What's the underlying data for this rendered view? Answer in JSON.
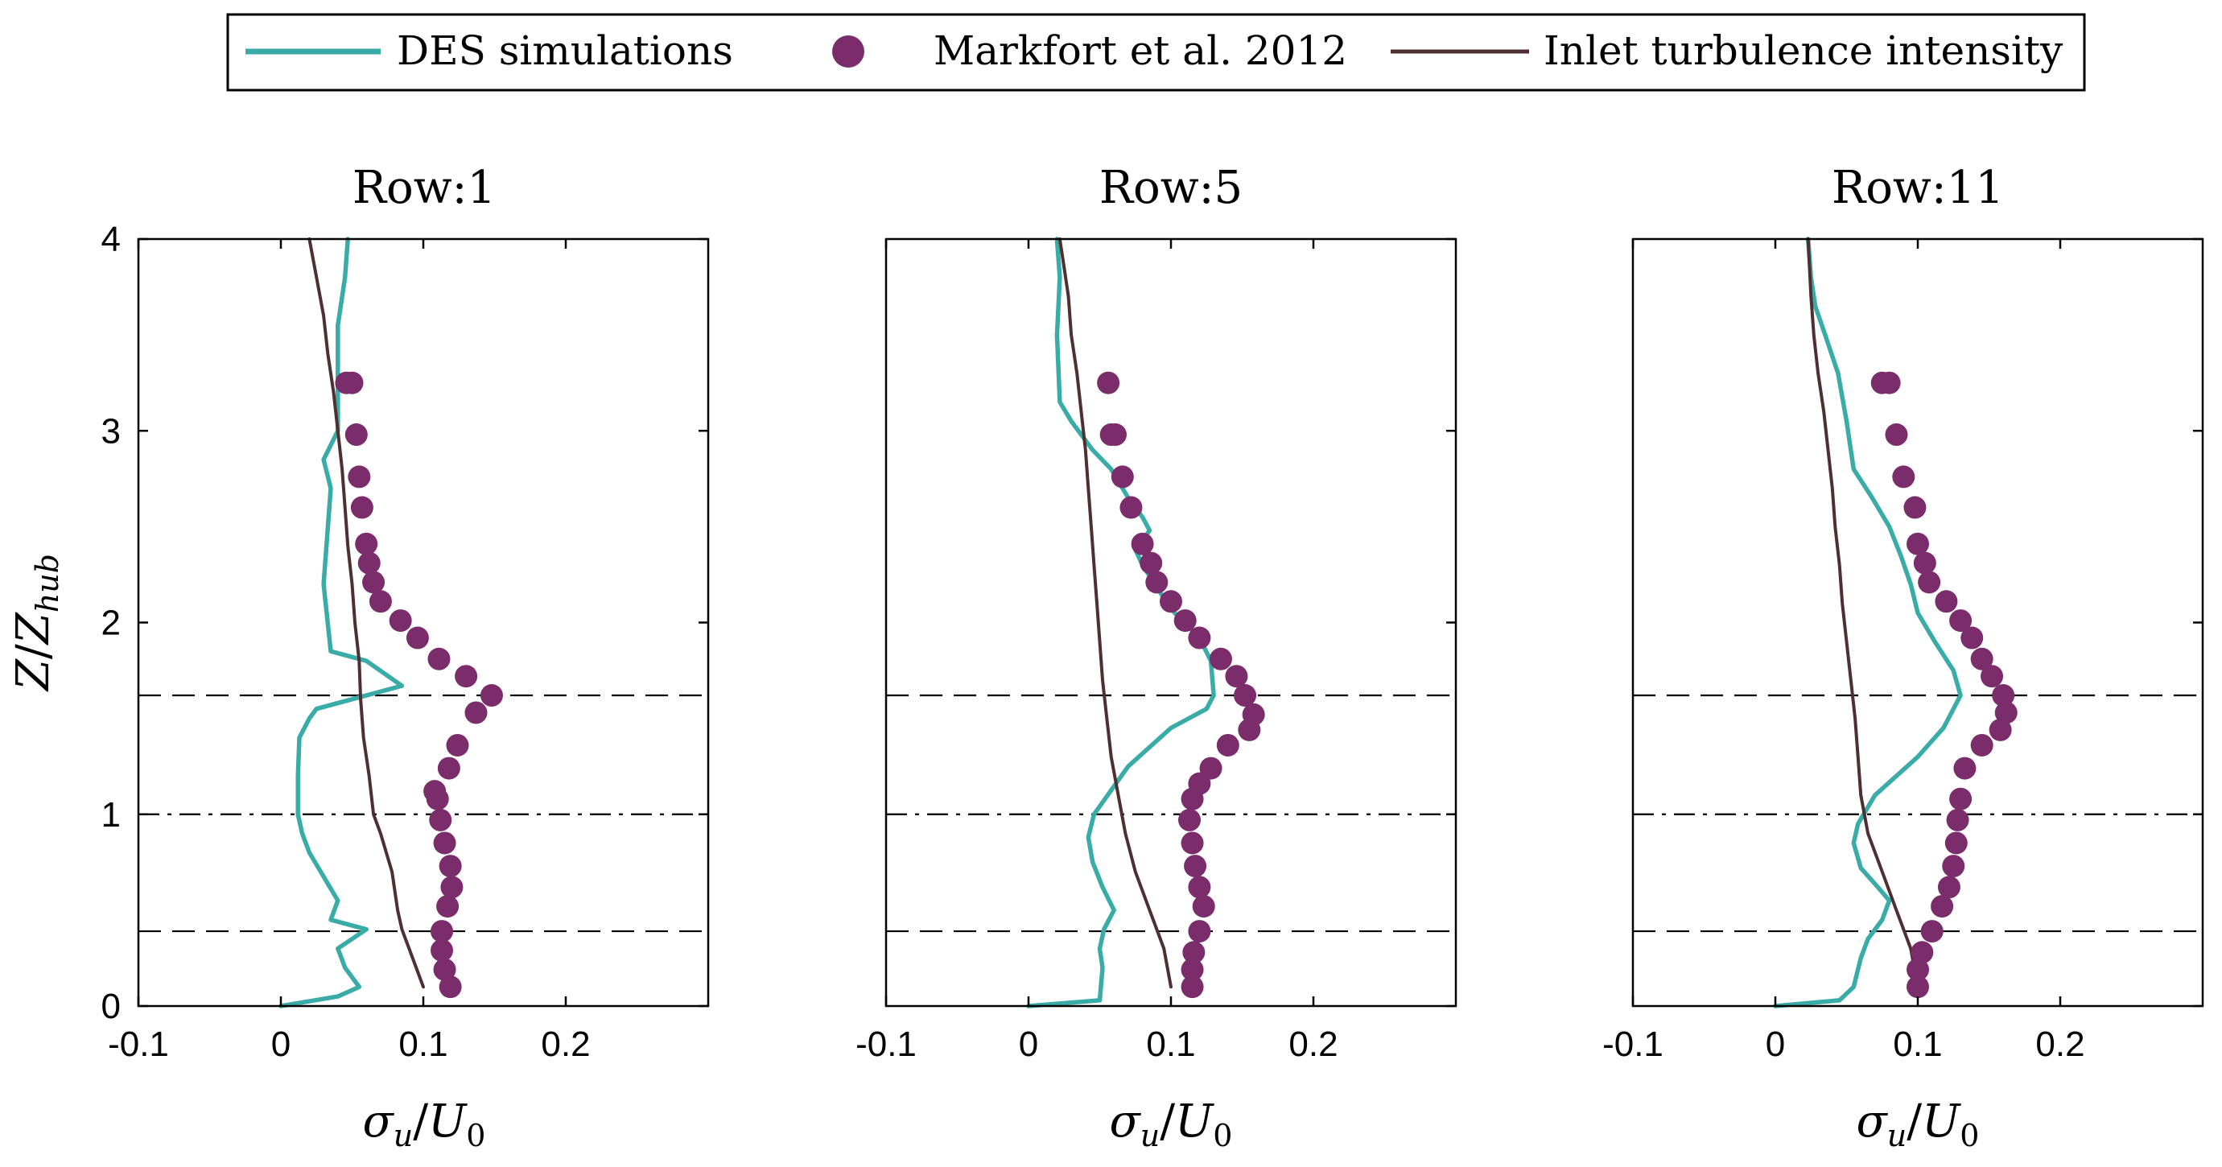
{
  "legend": {
    "position": "top-center",
    "entries": [
      {
        "label": "DES simulations",
        "kind": "line",
        "color": "#3aaca8"
      },
      {
        "label": "Markfort et al. 2012",
        "kind": "marker",
        "color": "#7b2d6b"
      },
      {
        "label": "Inlet turbulence intensity",
        "kind": "line",
        "color": "#4f3030"
      }
    ]
  },
  "chart_data": [
    {
      "type": "line",
      "title": "Row:1",
      "xlabel_main": "σ",
      "xlabel_sub": "u",
      "xlabel_div": "/",
      "xlabel_main2": "U",
      "xlabel_sub2": "0",
      "ylabel_main": "Z",
      "ylabel_div": "/",
      "ylabel_main2": "Z",
      "ylabel_sub2": "hub",
      "xlim": [
        -0.1,
        0.3
      ],
      "ylim": [
        0,
        4
      ],
      "xticks": [
        "-0.1",
        "0",
        "0.1",
        "0.2"
      ],
      "yticks": [
        "0",
        "1",
        "2",
        "3",
        "4"
      ],
      "ref_lines": [
        {
          "y": 1.62,
          "style": "dashed"
        },
        {
          "y": 1.0,
          "style": "dashdot"
        },
        {
          "y": 0.39,
          "style": "dashed"
        }
      ],
      "series": [
        {
          "name": "DES simulations",
          "x": [
            0.0,
            0.04,
            0.055,
            0.045,
            0.04,
            0.05,
            0.06,
            0.035,
            0.04,
            0.02,
            0.015,
            0.012,
            0.012,
            0.013,
            0.02,
            0.025,
            0.05,
            0.085,
            0.06,
            0.035,
            0.03,
            0.035,
            0.03,
            0.04,
            0.04,
            0.04,
            0.045,
            0.047
          ],
          "y": [
            0.0,
            0.05,
            0.1,
            0.2,
            0.3,
            0.35,
            0.4,
            0.45,
            0.55,
            0.8,
            0.9,
            1.0,
            1.2,
            1.4,
            1.5,
            1.55,
            1.6,
            1.67,
            1.8,
            1.85,
            2.2,
            2.7,
            2.85,
            3.0,
            3.2,
            3.55,
            3.8,
            4.0
          ]
        },
        {
          "name": "Inlet turbulence intensity",
          "x": [
            0.1,
            0.09,
            0.085,
            0.082,
            0.08,
            0.078,
            0.07,
            0.065,
            0.062,
            0.058,
            0.056,
            0.055,
            0.052,
            0.05,
            0.047,
            0.045,
            0.043,
            0.04,
            0.037,
            0.033,
            0.03,
            0.025,
            0.02
          ],
          "y": [
            0.1,
            0.3,
            0.4,
            0.5,
            0.6,
            0.7,
            0.9,
            1.0,
            1.2,
            1.4,
            1.6,
            1.8,
            2.0,
            2.2,
            2.4,
            2.6,
            2.8,
            3.0,
            3.2,
            3.4,
            3.6,
            3.8,
            4.0
          ]
        },
        {
          "name": "Markfort et al. 2012",
          "x": [
            0.119,
            0.115,
            0.113,
            0.113,
            0.117,
            0.12,
            0.119,
            0.115,
            0.112,
            0.11,
            0.108,
            0.118,
            0.124,
            0.137,
            0.148,
            0.13,
            0.111,
            0.096,
            0.084,
            0.07,
            0.065,
            0.062,
            0.06,
            0.057,
            0.055,
            0.053,
            0.05,
            0.046
          ],
          "y": [
            0.1,
            0.19,
            0.29,
            0.39,
            0.52,
            0.62,
            0.73,
            0.85,
            0.97,
            1.08,
            1.12,
            1.24,
            1.36,
            1.53,
            1.62,
            1.72,
            1.81,
            1.92,
            2.01,
            2.11,
            2.21,
            2.31,
            2.41,
            2.6,
            2.76,
            2.98,
            3.25,
            3.25
          ]
        }
      ],
      "markers_series_index": 2
    },
    {
      "type": "line",
      "title": "Row:5",
      "xlabel_main": "σ",
      "xlabel_sub": "u",
      "xlabel_div": "/",
      "xlabel_main2": "U",
      "xlabel_sub2": "0",
      "xlim": [
        -0.1,
        0.3
      ],
      "ylim": [
        0,
        4
      ],
      "xticks": [
        "-0.1",
        "0",
        "0.1",
        "0.2"
      ],
      "ref_lines": [
        {
          "y": 1.62,
          "style": "dashed"
        },
        {
          "y": 1.0,
          "style": "dashdot"
        },
        {
          "y": 0.39,
          "style": "dashed"
        }
      ],
      "series": [
        {
          "name": "DES simulations",
          "x": [
            0.0,
            0.05,
            0.052,
            0.05,
            0.053,
            0.06,
            0.052,
            0.045,
            0.042,
            0.046,
            0.07,
            0.1,
            0.125,
            0.13,
            0.128,
            0.12,
            0.1,
            0.08,
            0.075,
            0.085,
            0.08,
            0.07,
            0.058,
            0.045,
            0.03,
            0.022,
            0.02,
            0.022,
            0.02
          ],
          "y": [
            0.0,
            0.03,
            0.2,
            0.3,
            0.4,
            0.5,
            0.62,
            0.75,
            0.88,
            1.0,
            1.25,
            1.45,
            1.55,
            1.62,
            1.8,
            1.92,
            2.07,
            2.3,
            2.38,
            2.48,
            2.55,
            2.65,
            2.8,
            2.9,
            3.05,
            3.15,
            3.5,
            3.8,
            4.0
          ]
        },
        {
          "name": "Inlet turbulence intensity",
          "x": [
            0.1,
            0.095,
            0.085,
            0.075,
            0.068,
            0.063,
            0.058,
            0.055,
            0.052,
            0.05,
            0.048,
            0.046,
            0.044,
            0.042,
            0.04,
            0.037,
            0.034,
            0.03,
            0.028,
            0.025,
            0.022
          ],
          "y": [
            0.1,
            0.3,
            0.5,
            0.7,
            0.9,
            1.1,
            1.3,
            1.5,
            1.7,
            1.9,
            2.1,
            2.3,
            2.5,
            2.7,
            2.9,
            3.1,
            3.3,
            3.5,
            3.7,
            3.85,
            4.0
          ]
        },
        {
          "name": "Markfort et al. 2012",
          "x": [
            0.115,
            0.115,
            0.116,
            0.12,
            0.123,
            0.12,
            0.117,
            0.115,
            0.113,
            0.115,
            0.12,
            0.128,
            0.14,
            0.155,
            0.158,
            0.152,
            0.146,
            0.135,
            0.12,
            0.11,
            0.1,
            0.09,
            0.086,
            0.08,
            0.072,
            0.066,
            0.061,
            0.058,
            0.056
          ],
          "y": [
            0.1,
            0.19,
            0.28,
            0.39,
            0.52,
            0.62,
            0.73,
            0.85,
            0.97,
            1.08,
            1.16,
            1.24,
            1.36,
            1.44,
            1.52,
            1.62,
            1.72,
            1.81,
            1.92,
            2.01,
            2.11,
            2.21,
            2.31,
            2.41,
            2.6,
            2.76,
            2.98,
            2.98,
            3.25
          ]
        }
      ],
      "markers_series_index": 2
    },
    {
      "type": "line",
      "title": "Row:11",
      "xlabel_main": "σ",
      "xlabel_sub": "u",
      "xlabel_div": "/",
      "xlabel_main2": "U",
      "xlabel_sub2": "0",
      "xlim": [
        -0.1,
        0.3
      ],
      "ylim": [
        0,
        4
      ],
      "xticks": [
        "-0.1",
        "0",
        "0.1",
        "0.2"
      ],
      "ref_lines": [
        {
          "y": 1.62,
          "style": "dashed"
        },
        {
          "y": 1.0,
          "style": "dashdot"
        },
        {
          "y": 0.39,
          "style": "dashed"
        }
      ],
      "series": [
        {
          "name": "DES simulations",
          "x": [
            0.0,
            0.045,
            0.055,
            0.06,
            0.065,
            0.075,
            0.08,
            0.072,
            0.06,
            0.055,
            0.058,
            0.07,
            0.1,
            0.118,
            0.13,
            0.125,
            0.112,
            0.1,
            0.095,
            0.088,
            0.08,
            0.068,
            0.055,
            0.05,
            0.044,
            0.035,
            0.028,
            0.025,
            0.023
          ],
          "y": [
            0.0,
            0.03,
            0.1,
            0.25,
            0.35,
            0.45,
            0.55,
            0.62,
            0.72,
            0.85,
            0.95,
            1.1,
            1.3,
            1.45,
            1.62,
            1.75,
            1.9,
            2.05,
            2.2,
            2.35,
            2.5,
            2.65,
            2.8,
            3.05,
            3.3,
            3.5,
            3.65,
            3.8,
            4.0
          ]
        },
        {
          "name": "Inlet turbulence intensity",
          "x": [
            0.1,
            0.095,
            0.09,
            0.085,
            0.075,
            0.065,
            0.06,
            0.058,
            0.056,
            0.053,
            0.05,
            0.047,
            0.045,
            0.042,
            0.04,
            0.037,
            0.034,
            0.03,
            0.027,
            0.025,
            0.023
          ],
          "y": [
            0.1,
            0.3,
            0.4,
            0.5,
            0.7,
            0.9,
            1.1,
            1.3,
            1.5,
            1.7,
            1.9,
            2.1,
            2.3,
            2.5,
            2.7,
            2.9,
            3.1,
            3.3,
            3.5,
            3.7,
            4.0
          ]
        },
        {
          "name": "Markfort et al. 2012",
          "x": [
            0.1,
            0.1,
            0.103,
            0.11,
            0.117,
            0.122,
            0.125,
            0.127,
            0.128,
            0.13,
            0.133,
            0.145,
            0.158,
            0.162,
            0.16,
            0.152,
            0.145,
            0.138,
            0.13,
            0.12,
            0.108,
            0.105,
            0.1,
            0.098,
            0.09,
            0.085,
            0.08,
            0.075
          ],
          "y": [
            0.1,
            0.19,
            0.28,
            0.39,
            0.52,
            0.62,
            0.73,
            0.85,
            0.97,
            1.08,
            1.24,
            1.36,
            1.44,
            1.53,
            1.62,
            1.72,
            1.81,
            1.92,
            2.01,
            2.11,
            2.21,
            2.31,
            2.41,
            2.6,
            2.76,
            2.98,
            3.25,
            3.25
          ]
        }
      ],
      "markers_series_index": 2
    }
  ]
}
